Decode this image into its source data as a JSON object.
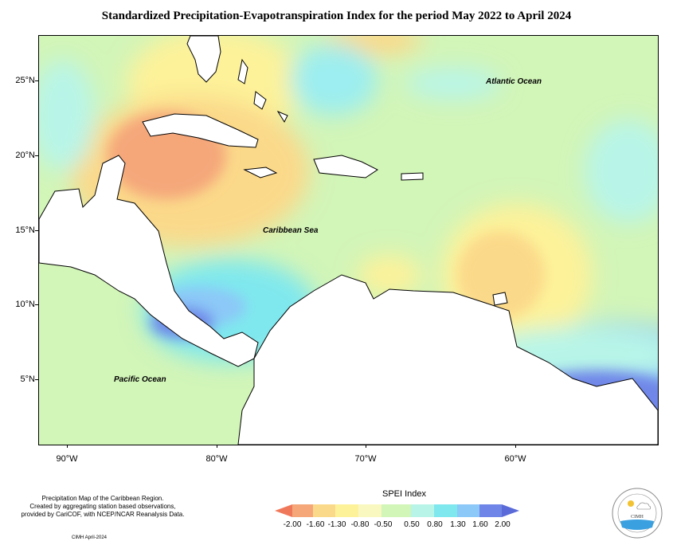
{
  "title": "Standardized Precipitation-Evapotranspiration Index for the period May 2022 to April 2024",
  "ocean_labels": {
    "atlantic": "Atlantic Ocean",
    "caribbean": "Caribbean Sea",
    "pacific": "Pacific Ocean"
  },
  "lat_labels": [
    "25°N",
    "20°N",
    "15°N",
    "10°N",
    "5°N"
  ],
  "lon_labels": [
    "90°W",
    "80°W",
    "70°W",
    "60°W"
  ],
  "note": {
    "line1": "Precipitation Map of the Caribbean Region.",
    "line2": "Created by aggregating station based observations,",
    "line3": "provided by CariCOF, with NCEP/NCAR Reanalysis Data.",
    "credit": "CIMH April-2024"
  },
  "legend": {
    "title": "SPEI Index",
    "labels": [
      "-2.00",
      "-1.60",
      "-1.30",
      "-0.80",
      "-0.50",
      "0.50",
      "0.80",
      "1.30",
      "1.60",
      "2.00"
    ],
    "colors": [
      "#f0785a",
      "#f5a77a",
      "#fbd98a",
      "#fdf29a",
      "#f8f8c0",
      "#d2f5b8",
      "#b8f5e8",
      "#7fe8ee",
      "#8cc8f8",
      "#6f86e8",
      "#5a6ad8"
    ]
  },
  "logo": {
    "text": "CIMH"
  }
}
